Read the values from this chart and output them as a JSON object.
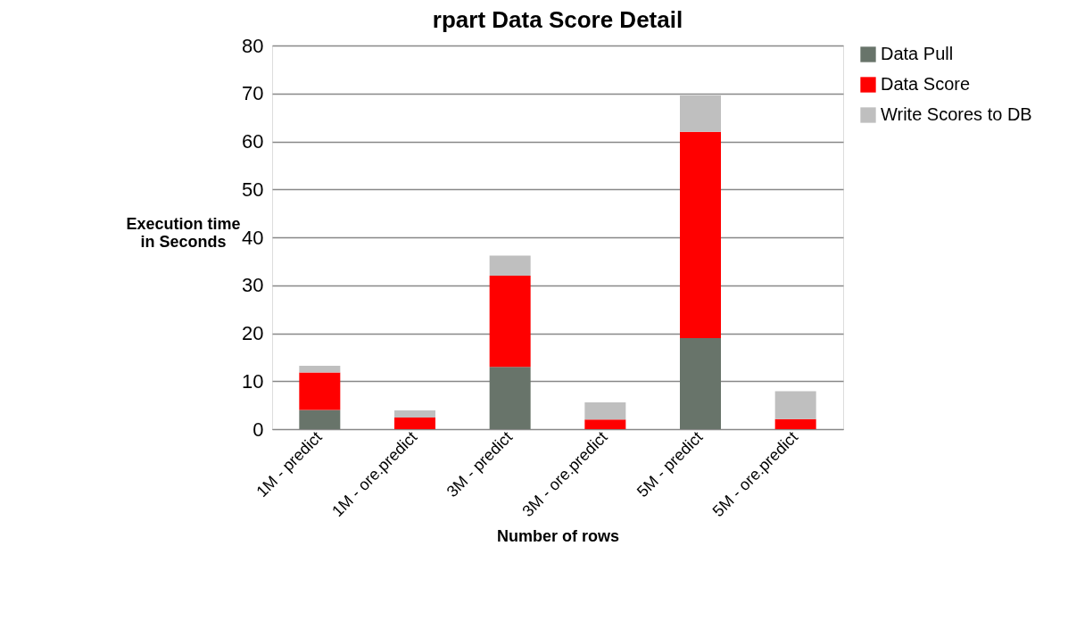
{
  "chart_data": {
    "type": "bar",
    "title": "rpart Data Score Detail",
    "xlabel": "Number of rows",
    "ylabel": "Execution time in Seconds",
    "categories": [
      "1M - predict",
      "1M - ore.predict",
      "3M - predict",
      "3M - ore.predict",
      "5M - predict",
      "5M - ore.predict"
    ],
    "stacked": true,
    "series": [
      {
        "name": "Data Pull",
        "color": "#68746a",
        "values": [
          4,
          0,
          13,
          0,
          19,
          0
        ]
      },
      {
        "name": "Data Score",
        "color": "#ff0000",
        "values": [
          7.8,
          2.4,
          19,
          2,
          43,
          2.1
        ]
      },
      {
        "name": "Write Scores to DB",
        "color": "#bfbfbf",
        "values": [
          1.4,
          1.5,
          4.2,
          3.6,
          7.6,
          5.8
        ]
      }
    ],
    "ylim": [
      0,
      80
    ],
    "yticks": [
      0,
      10,
      20,
      30,
      40,
      50,
      60,
      70,
      80
    ],
    "grid": "y",
    "legend": "right"
  }
}
